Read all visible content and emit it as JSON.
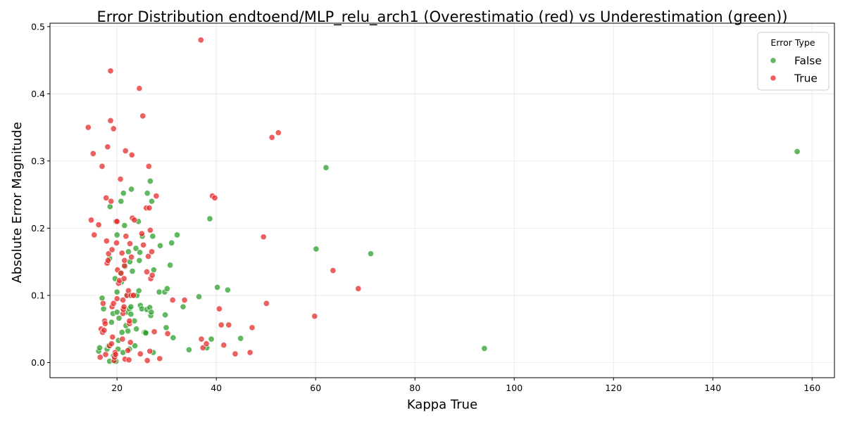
{
  "chart_data": {
    "type": "scatter",
    "title": "Error Distribution endtoend/MLP_relu_arch1 (Overestimatio (red) vs Underestimation (green))",
    "xlabel": "Kappa True",
    "ylabel": "Absolute Error Magnitude",
    "xlim": [
      6.5,
      164.5
    ],
    "ylim": [
      -0.0225,
      0.505
    ],
    "xticks": [
      20,
      40,
      60,
      80,
      100,
      120,
      140,
      160
    ],
    "yticks": [
      0.0,
      0.1,
      0.2,
      0.3,
      0.4,
      0.5
    ],
    "grid": true,
    "legend": {
      "title": "Error Type",
      "placement": "top-right",
      "entries": [
        {
          "label": "False",
          "color": "#2ca02c"
        },
        {
          "label": "True",
          "color": "#e62b2b"
        }
      ]
    },
    "series": [
      {
        "name": "False",
        "color": "#2ca02c",
        "points": [
          [
            16.3,
            0.017
          ],
          [
            16.5,
            0.022
          ],
          [
            17.0,
            0.096
          ],
          [
            17.3,
            0.08
          ],
          [
            18.0,
            0.02
          ],
          [
            18.3,
            0.025
          ],
          [
            18.5,
            0.002
          ],
          [
            18.5,
            0.155
          ],
          [
            18.6,
            0.232
          ],
          [
            18.9,
            0.06
          ],
          [
            19.2,
            0.073
          ],
          [
            19.3,
            0.01
          ],
          [
            19.5,
            0.002
          ],
          [
            19.6,
            0.125
          ],
          [
            19.8,
            0.002
          ],
          [
            20.0,
            0.19
          ],
          [
            20.0,
            0.105
          ],
          [
            20.0,
            0.075
          ],
          [
            20.2,
            0.02
          ],
          [
            20.3,
            0.033
          ],
          [
            20.4,
            0.066
          ],
          [
            20.7,
            0.133
          ],
          [
            20.8,
            0.24
          ],
          [
            20.9,
            0.12
          ],
          [
            21.0,
            0.045
          ],
          [
            21.2,
            0.015
          ],
          [
            21.3,
            0.252
          ],
          [
            21.5,
            0.204
          ],
          [
            21.6,
            0.143
          ],
          [
            21.8,
            0.055
          ],
          [
            22.0,
            0.1
          ],
          [
            22.0,
            0.075
          ],
          [
            22.2,
            0.047
          ],
          [
            22.3,
            0.165
          ],
          [
            22.5,
            0.02
          ],
          [
            22.5,
            0.08
          ],
          [
            22.6,
            0.15
          ],
          [
            22.8,
            0.072
          ],
          [
            22.8,
            0.083
          ],
          [
            22.9,
            0.258
          ],
          [
            23.1,
            0.136
          ],
          [
            23.3,
            0.1
          ],
          [
            23.5,
            0.062
          ],
          [
            23.6,
            0.025
          ],
          [
            23.8,
            0.17
          ],
          [
            23.9,
            0.05
          ],
          [
            24.0,
            0.1
          ],
          [
            24.3,
            0.21
          ],
          [
            24.4,
            0.107
          ],
          [
            24.5,
            0.152
          ],
          [
            24.6,
            0.164
          ],
          [
            24.7,
            0.085
          ],
          [
            25.0,
            0.08
          ],
          [
            25.1,
            0.188
          ],
          [
            25.5,
            0.045
          ],
          [
            25.7,
            0.045
          ],
          [
            25.8,
            0.044
          ],
          [
            26.0,
            0.079
          ],
          [
            26.1,
            0.252
          ],
          [
            26.6,
            0.082
          ],
          [
            26.7,
            0.27
          ],
          [
            26.8,
            0.07
          ],
          [
            26.9,
            0.075
          ],
          [
            27.0,
            0.24
          ],
          [
            27.2,
            0.188
          ],
          [
            27.3,
            0.015
          ],
          [
            27.4,
            0.138
          ],
          [
            28.5,
            0.105
          ],
          [
            28.7,
            0.174
          ],
          [
            29.6,
            0.105
          ],
          [
            29.7,
            0.071
          ],
          [
            29.9,
            0.052
          ],
          [
            30.1,
            0.11
          ],
          [
            30.7,
            0.145
          ],
          [
            31.0,
            0.178
          ],
          [
            31.3,
            0.037
          ],
          [
            32.1,
            0.19
          ],
          [
            33.3,
            0.083
          ],
          [
            34.5,
            0.019
          ],
          [
            36.5,
            0.098
          ],
          [
            38.1,
            0.022
          ],
          [
            38.7,
            0.214
          ],
          [
            39.0,
            0.035
          ],
          [
            40.2,
            0.112
          ],
          [
            42.3,
            0.108
          ],
          [
            44.9,
            0.036
          ],
          [
            60.1,
            0.169
          ],
          [
            62.1,
            0.29
          ],
          [
            71.1,
            0.162
          ],
          [
            94.0,
            0.021
          ],
          [
            157.0,
            0.314
          ]
        ]
      },
      {
        "name": "True",
        "color": "#e62b2b",
        "points": [
          [
            14.2,
            0.35
          ],
          [
            14.8,
            0.212
          ],
          [
            15.2,
            0.311
          ],
          [
            15.4,
            0.19
          ],
          [
            16.3,
            0.205
          ],
          [
            16.6,
            0.008
          ],
          [
            16.8,
            0.05
          ],
          [
            17.0,
            0.292
          ],
          [
            17.1,
            0.045
          ],
          [
            17.2,
            0.088
          ],
          [
            17.4,
            0.048
          ],
          [
            17.5,
            0.062
          ],
          [
            17.6,
            0.058
          ],
          [
            17.7,
            0.012
          ],
          [
            17.8,
            0.245
          ],
          [
            17.9,
            0.181
          ],
          [
            18.0,
            0.148
          ],
          [
            18.1,
            0.321
          ],
          [
            18.2,
            0.152
          ],
          [
            18.3,
            0.162
          ],
          [
            18.5,
            0.025
          ],
          [
            18.7,
            0.36
          ],
          [
            18.7,
            0.434
          ],
          [
            18.8,
            0.24
          ],
          [
            18.9,
            0.028
          ],
          [
            19.0,
            0.083
          ],
          [
            19.0,
            0.168
          ],
          [
            19.1,
            0.038
          ],
          [
            19.3,
            0.348
          ],
          [
            19.3,
            0.088
          ],
          [
            19.4,
            0.003
          ],
          [
            19.5,
            0.008
          ],
          [
            19.6,
            0.015
          ],
          [
            19.7,
            0.012
          ],
          [
            19.8,
            0.21
          ],
          [
            19.9,
            0.178
          ],
          [
            20.0,
            0.21
          ],
          [
            20.0,
            0.095
          ],
          [
            20.1,
            0.138
          ],
          [
            20.3,
            0.118
          ],
          [
            20.5,
            0.122
          ],
          [
            20.7,
            0.273
          ],
          [
            20.8,
            0.133
          ],
          [
            21.0,
            0.163
          ],
          [
            21.1,
            0.035
          ],
          [
            21.2,
            0.08
          ],
          [
            21.2,
            0.073
          ],
          [
            21.2,
            0.093
          ],
          [
            21.3,
            0.079
          ],
          [
            21.4,
            0.125
          ],
          [
            21.4,
            0.083
          ],
          [
            21.5,
            0.144
          ],
          [
            21.5,
            0.152
          ],
          [
            21.6,
            0.005
          ],
          [
            21.7,
            0.315
          ],
          [
            21.8,
            0.188
          ],
          [
            22.0,
            0.1
          ],
          [
            22.2,
            0.018
          ],
          [
            22.3,
            0.107
          ],
          [
            22.4,
            0.004
          ],
          [
            22.5,
            0.058
          ],
          [
            22.5,
            0.062
          ],
          [
            22.6,
            0.177
          ],
          [
            22.7,
            0.03
          ],
          [
            22.8,
            0.1
          ],
          [
            22.9,
            0.157
          ],
          [
            23.0,
            0.309
          ],
          [
            23.1,
            0.215
          ],
          [
            23.3,
            0.1
          ],
          [
            23.5,
            0.212
          ],
          [
            24.5,
            0.408
          ],
          [
            24.7,
            0.013
          ],
          [
            25.0,
            0.192
          ],
          [
            25.2,
            0.367
          ],
          [
            25.3,
            0.175
          ],
          [
            25.9,
            0.23
          ],
          [
            26.0,
            0.135
          ],
          [
            26.1,
            0.003
          ],
          [
            26.3,
            0.158
          ],
          [
            26.4,
            0.292
          ],
          [
            26.5,
            0.23
          ],
          [
            26.6,
            0.017
          ],
          [
            26.7,
            0.197
          ],
          [
            26.8,
            0.125
          ],
          [
            27.0,
            0.165
          ],
          [
            27.1,
            0.13
          ],
          [
            27.5,
            0.046
          ],
          [
            27.9,
            0.248
          ],
          [
            28.6,
            0.006
          ],
          [
            30.2,
            0.043
          ],
          [
            31.2,
            0.093
          ],
          [
            33.6,
            0.093
          ],
          [
            36.9,
            0.48
          ],
          [
            37.0,
            0.035
          ],
          [
            37.3,
            0.022
          ],
          [
            38.0,
            0.028
          ],
          [
            39.2,
            0.248
          ],
          [
            39.7,
            0.245
          ],
          [
            40.6,
            0.08
          ],
          [
            41.0,
            0.056
          ],
          [
            41.5,
            0.026
          ],
          [
            42.5,
            0.056
          ],
          [
            43.8,
            0.013
          ],
          [
            46.8,
            0.015
          ],
          [
            47.2,
            0.052
          ],
          [
            49.5,
            0.187
          ],
          [
            50.1,
            0.088
          ],
          [
            51.2,
            0.335
          ],
          [
            52.5,
            0.342
          ],
          [
            59.8,
            0.069
          ],
          [
            63.5,
            0.137
          ],
          [
            68.6,
            0.11
          ]
        ]
      }
    ]
  }
}
